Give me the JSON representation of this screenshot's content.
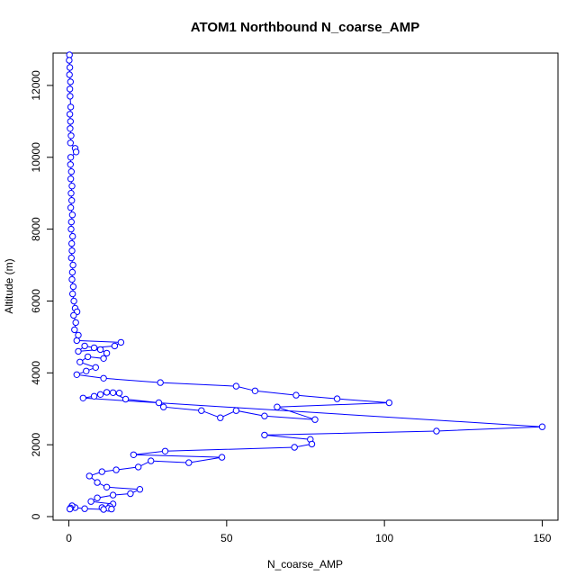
{
  "chart_data": {
    "type": "scatter",
    "title": "ATOM1 Northbound N_coarse_AMP",
    "xlabel": "N_coarse_AMP",
    "ylabel": "Altitude (m)",
    "xlim": [
      -5,
      155
    ],
    "ylim": [
      -100,
      12900
    ],
    "xticks": [
      0,
      50,
      100,
      150
    ],
    "yticks": [
      0,
      2000,
      4000,
      6000,
      8000,
      10000,
      12000
    ],
    "xtick_labels": [
      "0",
      "50",
      "100",
      "150"
    ],
    "ytick_labels": [
      "0",
      "2000",
      "4000",
      "6000",
      "8000",
      "10000",
      "12000"
    ],
    "grid": false,
    "legend": "none",
    "colors": {
      "series": "#0000ff",
      "frame": "#000000"
    },
    "series": [
      {
        "marker": "open-circle",
        "line": true,
        "points": [
          [
            0.2,
            12850
          ],
          [
            0.1,
            12700
          ],
          [
            0.3,
            12500
          ],
          [
            0.2,
            12300
          ],
          [
            0.5,
            12100
          ],
          [
            0.3,
            11900
          ],
          [
            0.4,
            11700
          ],
          [
            0.6,
            11400
          ],
          [
            0.3,
            11200
          ],
          [
            0.5,
            11000
          ],
          [
            0.4,
            10800
          ],
          [
            0.7,
            10600
          ],
          [
            0.5,
            10400
          ],
          [
            2.0,
            10250
          ],
          [
            2.3,
            10150
          ],
          [
            0.6,
            10000
          ],
          [
            0.5,
            9800
          ],
          [
            0.8,
            9600
          ],
          [
            0.6,
            9400
          ],
          [
            1.0,
            9200
          ],
          [
            0.7,
            9000
          ],
          [
            0.9,
            8800
          ],
          [
            0.6,
            8600
          ],
          [
            1.1,
            8400
          ],
          [
            0.8,
            8200
          ],
          [
            0.7,
            8000
          ],
          [
            1.2,
            7800
          ],
          [
            0.9,
            7600
          ],
          [
            1.0,
            7400
          ],
          [
            0.8,
            7200
          ],
          [
            1.3,
            7000
          ],
          [
            1.1,
            6800
          ],
          [
            1.0,
            6600
          ],
          [
            1.4,
            6400
          ],
          [
            1.2,
            6200
          ],
          [
            1.6,
            6000
          ],
          [
            2.0,
            5800
          ],
          [
            2.6,
            5700
          ],
          [
            1.5,
            5600
          ],
          [
            2.2,
            5400
          ],
          [
            1.8,
            5200
          ],
          [
            3.0,
            5050
          ],
          [
            2.5,
            4900
          ],
          [
            16.5,
            4850
          ],
          [
            14.5,
            4750
          ],
          [
            8.0,
            4700
          ],
          [
            5.0,
            4750
          ],
          [
            3.0,
            4600
          ],
          [
            10.0,
            4650
          ],
          [
            12.0,
            4550
          ],
          [
            11.0,
            4400
          ],
          [
            6.0,
            4450
          ],
          [
            3.5,
            4300
          ],
          [
            8.5,
            4150
          ],
          [
            5.5,
            4050
          ],
          [
            2.5,
            3950
          ],
          [
            11.0,
            3850
          ],
          [
            29.0,
            3730
          ],
          [
            53.0,
            3630
          ],
          [
            59.0,
            3500
          ],
          [
            72.0,
            3380
          ],
          [
            85.0,
            3280
          ],
          [
            101.5,
            3170
          ],
          [
            66.0,
            3050
          ],
          [
            78.0,
            2700
          ],
          [
            62.0,
            2800
          ],
          [
            53.0,
            2950
          ],
          [
            48.0,
            2750
          ],
          [
            42.0,
            2950
          ],
          [
            30.0,
            3050
          ],
          [
            28.5,
            3170
          ],
          [
            18.0,
            3270
          ],
          [
            14.0,
            3450
          ],
          [
            12.0,
            3460
          ],
          [
            16.0,
            3440
          ],
          [
            10.0,
            3400
          ],
          [
            8.0,
            3350
          ],
          [
            4.5,
            3300
          ],
          [
            150.0,
            2500
          ],
          [
            116.5,
            2380
          ],
          [
            62.0,
            2270
          ],
          [
            76.5,
            2150
          ],
          [
            77.0,
            2020
          ],
          [
            71.5,
            1930
          ],
          [
            30.5,
            1820
          ],
          [
            20.5,
            1720
          ],
          [
            48.5,
            1650
          ],
          [
            38.0,
            1500
          ],
          [
            26.0,
            1550
          ],
          [
            22.0,
            1380
          ],
          [
            15.0,
            1300
          ],
          [
            10.5,
            1250
          ],
          [
            6.5,
            1130
          ],
          [
            9.0,
            950
          ],
          [
            12.0,
            820
          ],
          [
            22.5,
            760
          ],
          [
            19.5,
            640
          ],
          [
            14.0,
            600
          ],
          [
            9.0,
            520
          ],
          [
            7.0,
            420
          ],
          [
            14.0,
            350
          ],
          [
            13.0,
            280
          ],
          [
            10.5,
            250
          ],
          [
            12.5,
            230
          ],
          [
            13.5,
            210
          ],
          [
            11.0,
            200
          ],
          [
            5.0,
            220
          ],
          [
            2.0,
            250
          ],
          [
            1.0,
            300
          ],
          [
            0.5,
            240
          ],
          [
            0.3,
            210
          ]
        ]
      }
    ]
  }
}
